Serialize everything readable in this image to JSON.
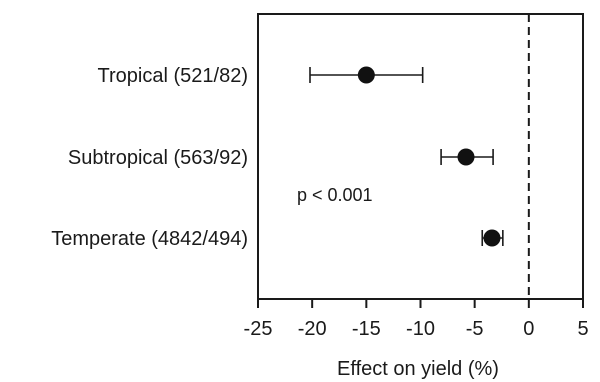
{
  "chart_data": {
    "type": "scatter",
    "title": "",
    "xlabel": "Effect on yield (%)",
    "ylabel": "",
    "xlim": [
      -25,
      5
    ],
    "xticks": [
      -25,
      -20,
      -15,
      -10,
      -5,
      0,
      5
    ],
    "reference_line_x": 0,
    "grid": false,
    "annotation": "p < 0.001",
    "categories": [
      "Tropical (521/82)",
      "Subtropical (563/92)",
      "Temperate (4842/494)"
    ],
    "points": [
      {
        "category": "Tropical (521/82)",
        "value": -15.0,
        "ci_low": -20.2,
        "ci_high": -9.8
      },
      {
        "category": "Subtropical (563/92)",
        "value": -5.8,
        "ci_low": -8.1,
        "ci_high": -3.3
      },
      {
        "category": "Temperate (4842/494)",
        "value": -3.4,
        "ci_low": -4.3,
        "ci_high": -2.4
      }
    ]
  }
}
